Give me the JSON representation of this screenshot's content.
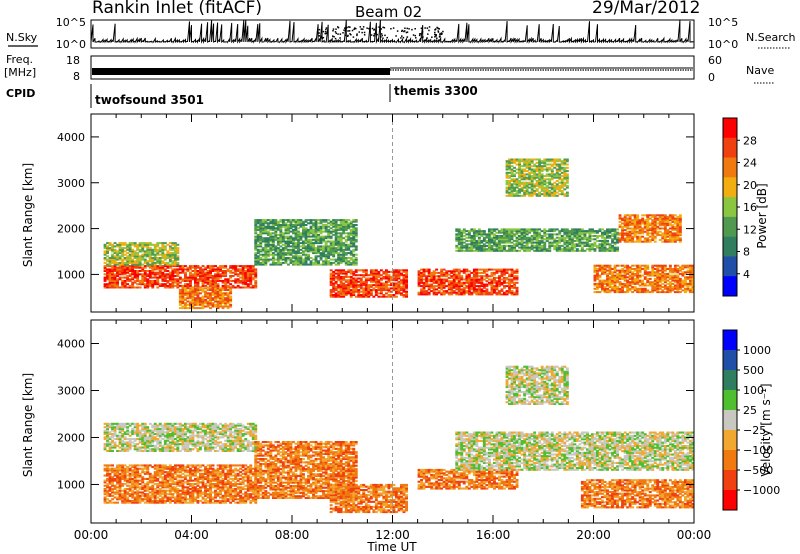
{
  "header": {
    "title": "Rankin Inlet (fitACF)",
    "beam": "Beam 02",
    "date": "29/Mar/2012"
  },
  "top_panels": {
    "nsky_label": "N.Sky",
    "nsky_ticks": [
      "10^5",
      "10^0"
    ],
    "nsearch_label": "N.Search",
    "freq_label": "Freq.",
    "freq_unit": "[MHz]",
    "freq_ticks": [
      "18",
      "8"
    ],
    "nave_ticks": [
      "60",
      "0"
    ],
    "nave_label": "Nave",
    "cpid_label": "CPID",
    "cpid_segments": [
      {
        "name": "twofsound",
        "id": "3501",
        "start_hour": 0
      },
      {
        "name": "themis",
        "id": "3300",
        "start_hour": 12
      }
    ]
  },
  "colors": {
    "power_scale": [
      "#0000ff",
      "#1f4fa8",
      "#2f7e60",
      "#4f9a4f",
      "#8ac640",
      "#f2ad10",
      "#f07a10",
      "#f04010",
      "#ff0000"
    ],
    "velocity_scale": [
      "#0000ff",
      "#1f4fa8",
      "#2f7e60",
      "#4fbf30",
      "#c8c8c0",
      "#f2a830",
      "#f07a10",
      "#f04010",
      "#ff0000"
    ],
    "ground_scatter": "#c8c8c0"
  },
  "chart_data": [
    {
      "type": "heatmap",
      "name": "Power",
      "xlabel": "",
      "ylabel": "Slant Range [km]",
      "x_ticks": [
        "00:00",
        "04:00",
        "08:00",
        "12:00",
        "16:00",
        "20:00",
        "00:00"
      ],
      "xlim_hours": [
        0,
        24
      ],
      "y_ticks": [
        "1000",
        "2000",
        "3000",
        "4000"
      ],
      "ylim_km": [
        180,
        4500
      ],
      "colorbar_label": "Power [dB]",
      "colorbar_ticks": [
        "4",
        "8",
        "12",
        "16",
        "20",
        "24",
        "28"
      ],
      "colorbar_range": [
        0,
        30
      ],
      "regions": [
        {
          "t0": 0.5,
          "t1": 6.5,
          "r0": 700,
          "r1": 1200,
          "level": 26
        },
        {
          "t0": 0.5,
          "t1": 3.5,
          "r0": 1200,
          "r1": 1700,
          "level": 14
        },
        {
          "t0": 3.5,
          "t1": 5.5,
          "r0": 250,
          "r1": 700,
          "level": 24
        },
        {
          "t0": 6.5,
          "t1": 10.5,
          "r0": 1200,
          "r1": 2200,
          "level": 12
        },
        {
          "t0": 9.5,
          "t1": 12.5,
          "r0": 500,
          "r1": 1100,
          "level": 26
        },
        {
          "t0": 13,
          "t1": 17,
          "r0": 550,
          "r1": 1100,
          "level": 25
        },
        {
          "t0": 14.5,
          "t1": 21,
          "r0": 1500,
          "r1": 2000,
          "level": 13
        },
        {
          "t0": 20,
          "t1": 24,
          "r0": 600,
          "r1": 1200,
          "level": 24
        },
        {
          "t0": 21,
          "t1": 23.5,
          "r0": 1700,
          "r1": 2300,
          "level": 21
        },
        {
          "t0": 16.5,
          "t1": 19,
          "r0": 2700,
          "r1": 3500,
          "level": 16
        }
      ]
    },
    {
      "type": "heatmap",
      "name": "Velocity",
      "xlabel": "Time UT",
      "ylabel": "Slant Range [km]",
      "x_ticks": [
        "00:00",
        "04:00",
        "08:00",
        "12:00",
        "16:00",
        "20:00",
        "00:00"
      ],
      "xlim_hours": [
        0,
        24
      ],
      "y_ticks": [
        "1000",
        "2000",
        "3000",
        "4000"
      ],
      "ylim_km": [
        180,
        4500
      ],
      "colorbar_label": "Velocity [m s⁻¹]",
      "colorbar_ticks": [
        "1000",
        "500",
        "100",
        "25",
        "−25",
        "−100",
        "−500",
        "−1000"
      ],
      "regions": [
        {
          "t0": 0.5,
          "t1": 6.5,
          "r0": 600,
          "r1": 1400,
          "level": -150
        },
        {
          "t0": 0.5,
          "t1": 6.5,
          "r0": 1700,
          "r1": 2300,
          "level": 0
        },
        {
          "t0": 6.5,
          "t1": 10.5,
          "r0": 700,
          "r1": 1900,
          "level": -120
        },
        {
          "t0": 9.5,
          "t1": 12.5,
          "r0": 400,
          "r1": 1000,
          "level": -200
        },
        {
          "t0": 13,
          "t1": 17,
          "r0": 900,
          "r1": 1300,
          "level": -300
        },
        {
          "t0": 14.5,
          "t1": 24,
          "r0": 1300,
          "r1": 2100,
          "level": 0
        },
        {
          "t0": 19.5,
          "t1": 24,
          "r0": 500,
          "r1": 1100,
          "level": -250
        },
        {
          "t0": 16.5,
          "t1": 19,
          "r0": 2700,
          "r1": 3500,
          "level": 0
        }
      ]
    }
  ]
}
